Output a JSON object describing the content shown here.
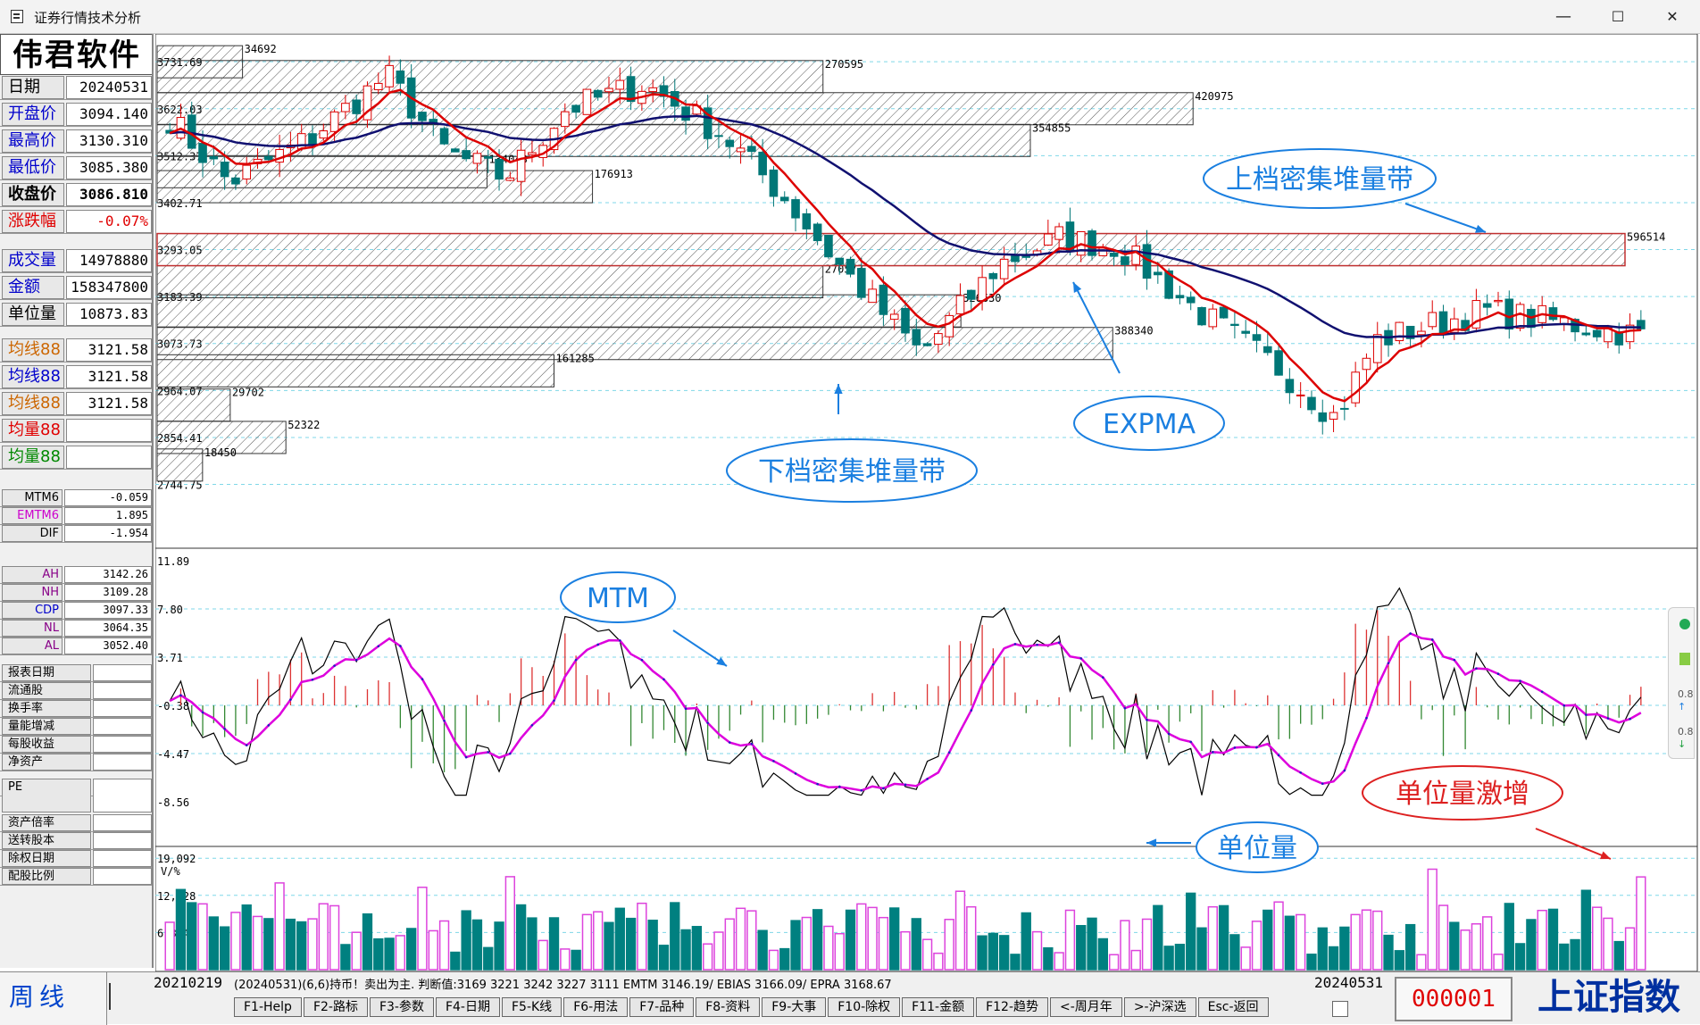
{
  "window": {
    "title": "证券行情技术分析",
    "min": "—",
    "max": "☐",
    "close": "✕"
  },
  "brand": "伟君软件",
  "info": {
    "rows": [
      {
        "label": "日期",
        "value": "20240531",
        "color": "#000"
      },
      {
        "label": "开盘价",
        "value": "3094.140",
        "color": "#0000cc"
      },
      {
        "label": "最高价",
        "value": "3130.310",
        "color": "#0000cc"
      },
      {
        "label": "最低价",
        "value": "3085.380",
        "color": "#0000cc"
      },
      {
        "label": "收盘价",
        "value": "3086.810",
        "color": "#000"
      },
      {
        "label": "涨跌幅",
        "value": "-0.07%",
        "color": "#e00000"
      },
      {
        "label": "成交量",
        "value": "14978880",
        "color": "#0000cc"
      },
      {
        "label": "金额",
        "value": "158347800",
        "color": "#0000cc"
      },
      {
        "label": "单位量",
        "value": "10873.83",
        "color": "#000"
      },
      {
        "label": "均线88",
        "value": "3121.58",
        "color": "#cc6600"
      },
      {
        "label": "均线88",
        "value": "3121.58",
        "color": "#0000cc"
      },
      {
        "label": "均线88",
        "value": "3121.58",
        "color": "#cc6600"
      },
      {
        "label": "均量88",
        "value": "",
        "color": "#e00000"
      },
      {
        "label": "均量88",
        "value": "",
        "color": "#008800"
      }
    ],
    "small": [
      {
        "label": "MTM6",
        "value": "-0.059",
        "color": "#000"
      },
      {
        "label": "EMTM6",
        "value": "1.895",
        "color": "#cc00cc"
      },
      {
        "label": "DIF",
        "value": "-1.954",
        "color": "#000"
      },
      {
        "label": "AH",
        "value": "3142.26",
        "color": "#880088"
      },
      {
        "label": "NH",
        "value": "3109.28",
        "color": "#880088"
      },
      {
        "label": "CDP",
        "value": "3097.33",
        "color": "#0000cc"
      },
      {
        "label": "NL",
        "value": "3064.35",
        "color": "#880088"
      },
      {
        "label": "AL",
        "value": "3052.40",
        "color": "#880088"
      },
      {
        "label": "报表日期",
        "value": "",
        "color": "#000"
      },
      {
        "label": "流通股",
        "value": "",
        "color": "#000"
      },
      {
        "label": "换手率",
        "value": "",
        "color": "#000"
      },
      {
        "label": "量能增减",
        "value": "",
        "color": "#000"
      },
      {
        "label": "每股收益",
        "value": "",
        "color": "#000"
      },
      {
        "label": "净资产",
        "value": "",
        "color": "#000"
      },
      {
        "label": "PE",
        "value": "",
        "color": "#000"
      },
      {
        "label": "资产倍率",
        "value": "",
        "color": "#000"
      },
      {
        "label": "送转股本",
        "value": "",
        "color": "#000"
      },
      {
        "label": "除权日期",
        "value": "",
        "color": "#000"
      },
      {
        "label": "配股比例",
        "value": "",
        "color": "#000"
      }
    ]
  },
  "chart_data": [
    {
      "type": "candlestick",
      "name": "K线",
      "y_ticks": [
        "3731.69",
        "3622.03",
        "3512.37",
        "3402.71",
        "3293.05",
        "3183.39",
        "3073.73",
        "2964.07",
        "2854.41",
        "2744.75"
      ],
      "ylim": [
        2700,
        3780
      ],
      "volume_profile": [
        {
          "price": 3731.69,
          "volume": 34692
        },
        {
          "price": 3697,
          "volume": 270595
        },
        {
          "price": 3622.03,
          "volume": 420975
        },
        {
          "price": 3548,
          "volume": 354855
        },
        {
          "price": 3475,
          "volume": 134048
        },
        {
          "price": 3440,
          "volume": 176913
        },
        {
          "price": 3293.05,
          "volume": 596514
        },
        {
          "price": 3218,
          "volume": 270573
        },
        {
          "price": 3150,
          "volume": 326630
        },
        {
          "price": 3073.73,
          "volume": 388340
        },
        {
          "price": 3010,
          "volume": 161285
        },
        {
          "price": 2930,
          "volume": 29702
        },
        {
          "price": 2854.41,
          "volume": 52322
        },
        {
          "price": 2790,
          "volume": 18450
        }
      ],
      "annotations": [
        "上档密集堆量带",
        "下档密集堆量带",
        "EXPMA"
      ]
    },
    {
      "type": "line",
      "name": "MTM",
      "y_ticks": [
        "11.89",
        "7.80",
        "3.71",
        "-0.38",
        "-4.47",
        "-8.56"
      ],
      "annotations": [
        "MTM"
      ]
    },
    {
      "type": "bar",
      "name": "单位量",
      "y_ticks": [
        "19,092",
        "12,728",
        "6,364"
      ],
      "unit": "V/%",
      "annotations": [
        "单位量",
        "单位量激增"
      ]
    }
  ],
  "status": {
    "period": "周线",
    "date_start": "20210219",
    "info": "(20240531)(6,6)持币！卖出为主.  判断值:3169   3221   3242   3227   3111  EMTM 3146.19/ EBIAS 3166.09/ EPRA 3168.67",
    "date_end": "20240531",
    "code": "000001",
    "index_name": "上证指数"
  },
  "fkeys": [
    "F1-Help",
    "F2-路标",
    "F3-参数",
    "F4-日期",
    "F5-K线",
    "F6-用法",
    "F7-品种",
    "F8-资料",
    "F9-大事",
    "F10-除权",
    "F11-金额",
    "F12-趋势",
    "<-周月年",
    ">-沪深选",
    "Esc-返回"
  ],
  "colors": {
    "up": "#dd0000",
    "down": "#007777",
    "expma_short": "#dd0000",
    "expma_long": "#101070",
    "mtm": "#000000",
    "emtm": "#dd00dd",
    "vol_up": "#dd44dd",
    "vol_down": "#008080",
    "annotation": "#1a7fe0"
  }
}
